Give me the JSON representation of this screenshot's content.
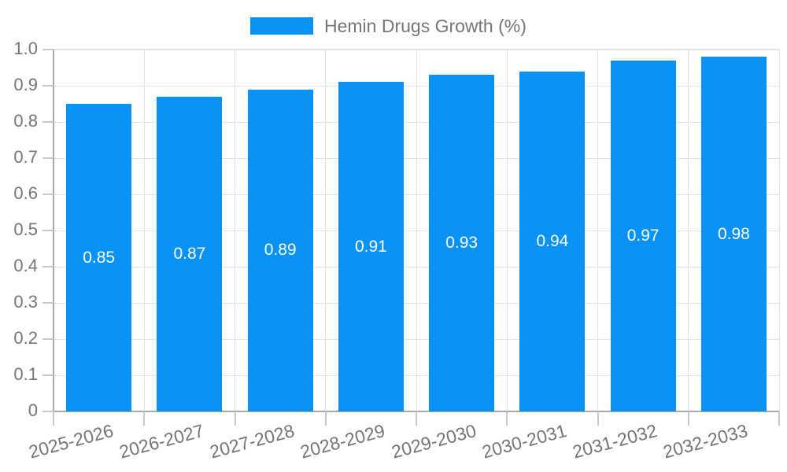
{
  "legend": {
    "label": "Hemin Drugs Growth (%)"
  },
  "chart_data": {
    "type": "bar",
    "title": "",
    "series_name": "Hemin Drugs Growth (%)",
    "categories": [
      "2025-2026",
      "2026-2027",
      "2027-2028",
      "2028-2029",
      "2029-2030",
      "2030-2031",
      "2031-2032",
      "2032-2033"
    ],
    "values": [
      0.85,
      0.87,
      0.89,
      0.91,
      0.93,
      0.94,
      0.97,
      0.98
    ],
    "value_labels": [
      "0.85",
      "0.87",
      "0.89",
      "0.91",
      "0.93",
      "0.94",
      "0.97",
      "0.98"
    ],
    "xlabel": "",
    "ylabel": "",
    "ylim": [
      0,
      1.0
    ],
    "ytick_step": 0.1,
    "ytick_labels": [
      "0",
      "0.1",
      "0.2",
      "0.3",
      "0.4",
      "0.5",
      "0.6",
      "0.7",
      "0.8",
      "0.9",
      "1.0"
    ],
    "grid": true,
    "legend_position": "top-center",
    "bar_label_position": "inside-middle",
    "x_label_rotation_deg": -15
  },
  "colors": {
    "bar": "#0892F5",
    "axis_text": "#757575",
    "value_label_text": "#FFFFFF",
    "gridline": "#E2E2E2",
    "axis_line": "#A8A8A8",
    "tick": "#C8C8C8",
    "background": "#FFFFFF"
  }
}
